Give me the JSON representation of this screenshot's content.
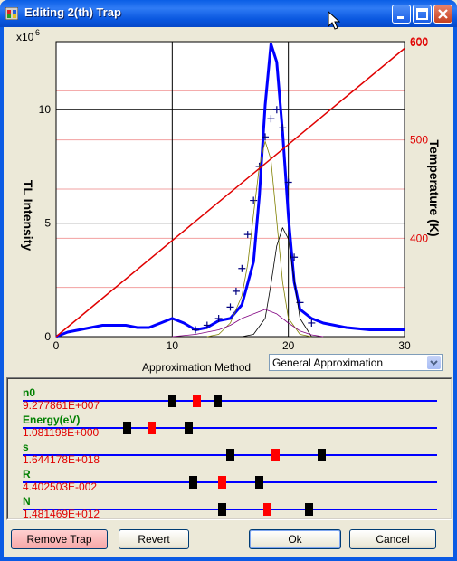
{
  "window": {
    "title": "Editing 2(th) Trap"
  },
  "chart_data": {
    "type": "line",
    "ylabel": "TL Intensity",
    "y_multiplier": "x10",
    "y_multiplier_exp": "6",
    "y2label": "Temperature (K)",
    "xlim": [
      0,
      30
    ],
    "ylim": [
      0,
      13
    ],
    "y2lim": [
      300,
      600
    ],
    "x_ticks": [
      "0",
      "10",
      "20",
      "30"
    ],
    "y_ticks": [
      "0",
      "5",
      "10"
    ],
    "y2_ticks": [
      "400",
      "500",
      "600"
    ],
    "colors": {
      "tl_fit": "#0000ff",
      "tl_measured": "#000080",
      "temperature": "#e00000",
      "component_1": "#808000",
      "component_2": "#000000",
      "component_3": "#800080"
    },
    "series": [
      {
        "style": "thick-line",
        "color": "#0000ff",
        "x": [
          0,
          1,
          2,
          3,
          4,
          5,
          6,
          7,
          8,
          9,
          10,
          11,
          12,
          13,
          14,
          15,
          16,
          17,
          17.5,
          18,
          18.5,
          19,
          19.5,
          20,
          20.5,
          21,
          22,
          23,
          24,
          25,
          26,
          27,
          28,
          29,
          30
        ],
        "values": [
          0,
          0.2,
          0.3,
          0.4,
          0.5,
          0.5,
          0.5,
          0.4,
          0.4,
          0.6,
          0.8,
          0.6,
          0.3,
          0.4,
          0.7,
          0.8,
          1.4,
          3.3,
          6.2,
          10.2,
          12.9,
          12.1,
          9.0,
          5.3,
          2.4,
          1.2,
          0.8,
          0.6,
          0.5,
          0.4,
          0.35,
          0.3,
          0.3,
          0.3,
          0.3
        ]
      },
      {
        "style": "plus-markers",
        "color": "#000080",
        "x": [
          12,
          13,
          14,
          15,
          15.5,
          16,
          16.5,
          17,
          17.5,
          18,
          18.5,
          19,
          19.5,
          20,
          20.5,
          21,
          22
        ],
        "values": [
          0.3,
          0.5,
          0.8,
          1.3,
          2,
          3,
          4.5,
          6,
          7.5,
          8.8,
          9.6,
          10,
          9.2,
          6.8,
          3.5,
          1.5,
          0.6
        ]
      },
      {
        "style": "thin-line",
        "color": "#808000",
        "x": [
          13,
          14,
          15,
          16,
          16.5,
          17,
          17.5,
          18,
          18.5,
          19,
          19.5,
          20,
          21,
          22
        ],
        "values": [
          0,
          0.1,
          0.6,
          1.8,
          3.2,
          5.4,
          7.5,
          8.6,
          7.8,
          5.1,
          2.4,
          0.8,
          0.1,
          0
        ]
      },
      {
        "style": "thin-line",
        "color": "#000000",
        "x": [
          16,
          17,
          18,
          18.5,
          19,
          19.5,
          20,
          20.5,
          21,
          22
        ],
        "values": [
          0,
          0.1,
          0.8,
          2.3,
          4.0,
          4.8,
          4.3,
          2.5,
          0.8,
          0
        ]
      },
      {
        "style": "thin-line",
        "color": "#800080",
        "x": [
          10,
          12,
          14,
          15,
          16,
          17,
          18,
          19,
          20,
          21,
          22,
          23
        ],
        "values": [
          0,
          0.1,
          0.3,
          0.5,
          0.8,
          1.0,
          1.2,
          1.0,
          0.6,
          0.25,
          0.08,
          0
        ]
      },
      {
        "style": "red-line",
        "color": "#e00000",
        "x": [
          0,
          30
        ],
        "values": [
          0,
          12.7
        ]
      }
    ]
  },
  "controls": {
    "method_label": "Approximation Method",
    "method_value": "General Approximation"
  },
  "parameters": [
    {
      "name": "n0",
      "value": "9.277861E+007",
      "markers": [
        0.36,
        0.42,
        0.47
      ]
    },
    {
      "name": "Energy(eV)",
      "value": "1.081198E+000",
      "markers": [
        0.25,
        0.31,
        0.4
      ]
    },
    {
      "name": "s",
      "value": "1.644178E+018",
      "markers": [
        0.5,
        0.61,
        0.72
      ]
    },
    {
      "name": "R",
      "value": "4.402503E-002",
      "markers": [
        0.41,
        0.48,
        0.57
      ]
    },
    {
      "name": "N",
      "value": "1.481469E+012",
      "markers": [
        0.48,
        0.59,
        0.69
      ]
    }
  ],
  "buttons": {
    "remove": "Remove Trap",
    "revert": "Revert",
    "ok": "Ok",
    "cancel": "Cancel"
  }
}
